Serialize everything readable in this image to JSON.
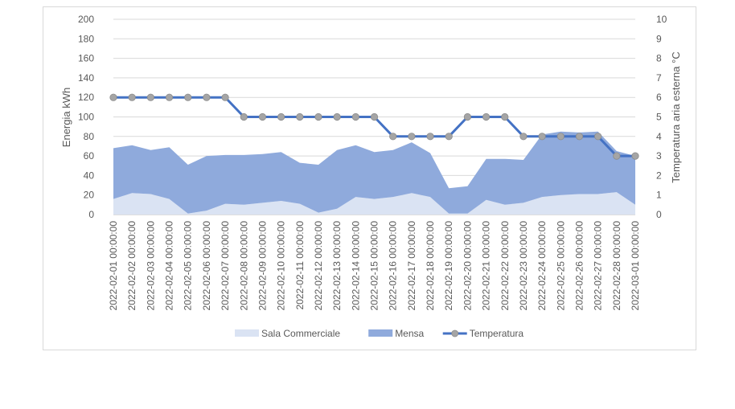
{
  "chart_data": {
    "type": "area",
    "x": [
      "2022-02-01 00:00:00",
      "2022-02-02 00:00:00",
      "2022-02-03 00:00:00",
      "2022-02-04 00:00:00",
      "2022-02-05 00:00:00",
      "2022-02-06 00:00:00",
      "2022-02-07 00:00:00",
      "2022-02-08 00:00:00",
      "2022-02-09 00:00:00",
      "2022-02-10 00:00:00",
      "2022-02-11 00:00:00",
      "2022-02-12 00:00:00",
      "2022-02-13 00:00:00",
      "2022-02-14 00:00:00",
      "2022-02-15 00:00:00",
      "2022-02-16 00:00:00",
      "2022-02-17 00:00:00",
      "2022-02-18 00:00:00",
      "2022-02-19 00:00:00",
      "2022-02-20 00:00:00",
      "2022-02-21 00:00:00",
      "2022-02-22 00:00:00",
      "2022-02-23 00:00:00",
      "2022-02-24 00:00:00",
      "2022-02-25 00:00:00",
      "2022-02-26 00:00:00",
      "2022-02-27 00:00:00",
      "2022-02-28 00:00:00",
      "2022-03-01 00:00:00"
    ],
    "series": [
      {
        "name": "Sala Commerciale",
        "axis": "left",
        "kind": "area",
        "color": "#dae3f3",
        "values": [
          16,
          22,
          21,
          16,
          1,
          4,
          11,
          10,
          12,
          14,
          11,
          2,
          6,
          18,
          16,
          18,
          22,
          18,
          1,
          1,
          15,
          10,
          12,
          18,
          20,
          21,
          21,
          23,
          10
        ]
      },
      {
        "name": "Mensa",
        "axis": "left",
        "kind": "area",
        "color": "#8faadc",
        "values": [
          52,
          49,
          45,
          53,
          50,
          56,
          50,
          51,
          50,
          50,
          42,
          49,
          60,
          53,
          48,
          48,
          52,
          45,
          26,
          28,
          42,
          47,
          44,
          64,
          65,
          63,
          64,
          42,
          50
        ]
      },
      {
        "name": "Temperatura",
        "axis": "right",
        "kind": "line",
        "color": "#4472c4",
        "marker_color": "#a5a5a5",
        "values": [
          6,
          6,
          6,
          6,
          6,
          6,
          6,
          5,
          5,
          5,
          5,
          5,
          5,
          5,
          5,
          4,
          4,
          4,
          4,
          5,
          5,
          5,
          4,
          4,
          4,
          4,
          4,
          3,
          3
        ]
      }
    ],
    "stacked": true,
    "ylabel": "Energia kWh",
    "y2label": "Temperatura aria esterna °C",
    "ylim": [
      0,
      200
    ],
    "y2lim": [
      0,
      10
    ],
    "yticks": [
      "0",
      "20",
      "40",
      "60",
      "80",
      "100",
      "120",
      "140",
      "160",
      "180",
      "200"
    ],
    "y2ticks": [
      "0",
      "1",
      "2",
      "3",
      "4",
      "5",
      "6",
      "7",
      "8",
      "9",
      "10"
    ],
    "grid": true,
    "grid_color": "#d9d9d9",
    "legend_position": "bottom"
  }
}
